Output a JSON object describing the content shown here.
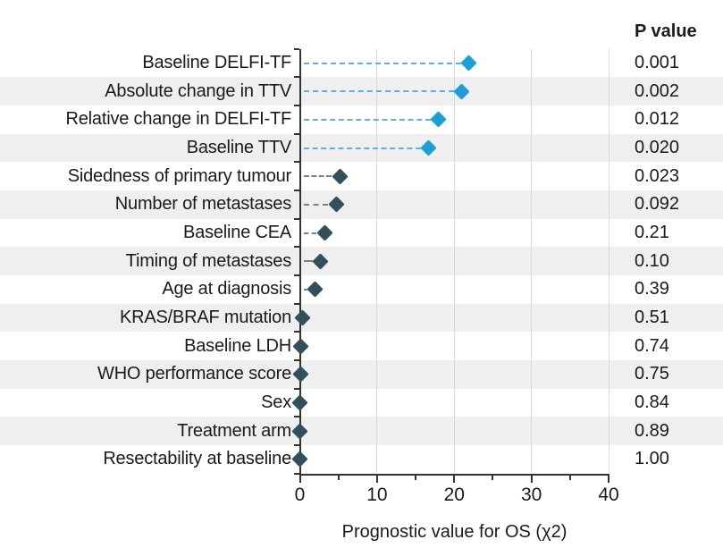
{
  "figure": {
    "p_value_header": "P value",
    "x_axis_title": "Prognostic value for OS (χ2)"
  },
  "chart_data": {
    "type": "scatter",
    "subtype": "horizontal-dot-forest",
    "title": "",
    "xlabel": "Prognostic value for OS (χ2)",
    "ylabel": "",
    "xlim": [
      0,
      40
    ],
    "xticks": [
      0,
      10,
      20,
      30,
      40
    ],
    "xticks_minor": [
      5,
      15,
      25,
      35
    ],
    "grid": "vertical lines at major ticks",
    "legend_position": "none",
    "p_value_column_header": "P value",
    "rows": [
      {
        "label": "Baseline DELFI-TF",
        "chi2": 21.9,
        "p_value": "0.001",
        "highlight": true
      },
      {
        "label": "Absolute change in TTV",
        "chi2": 21.0,
        "p_value": "0.002",
        "highlight": true
      },
      {
        "label": "Relative change in DELFI-TF",
        "chi2": 18.0,
        "p_value": "0.012",
        "highlight": true
      },
      {
        "label": "Baseline TTV",
        "chi2": 16.7,
        "p_value": "0.020",
        "highlight": true
      },
      {
        "label": "Sidedness of primary tumour",
        "chi2": 5.2,
        "p_value": "0.023",
        "highlight": false
      },
      {
        "label": "Number of metastases",
        "chi2": 4.7,
        "p_value": "0.092",
        "highlight": false
      },
      {
        "label": "Baseline CEA",
        "chi2": 3.2,
        "p_value": "0.21",
        "highlight": false
      },
      {
        "label": "Timing of metastases",
        "chi2": 2.7,
        "p_value": "0.10",
        "highlight": false
      },
      {
        "label": "Age at diagnosis",
        "chi2": 2.0,
        "p_value": "0.39",
        "highlight": false
      },
      {
        "label": "KRAS/BRAF mutation",
        "chi2": 0.4,
        "p_value": "0.51",
        "highlight": false
      },
      {
        "label": "Baseline LDH",
        "chi2": 0.15,
        "p_value": "0.74",
        "highlight": false
      },
      {
        "label": "WHO performance score",
        "chi2": 0.12,
        "p_value": "0.75",
        "highlight": false
      },
      {
        "label": "Sex",
        "chi2": 0.05,
        "p_value": "0.84",
        "highlight": false
      },
      {
        "label": "Treatment arm",
        "chi2": 0.03,
        "p_value": "0.89",
        "highlight": false
      },
      {
        "label": "Resectability at baseline",
        "chi2": 0.0,
        "p_value": "1.00",
        "highlight": false
      }
    ],
    "colors": {
      "highlight_marker": "#1d9ed9",
      "normal_marker": "#31505b",
      "highlight_leader": "#5cb1e1",
      "normal_leader": "#72858f",
      "row_stripe": "#efefef",
      "gridline": "#d9d9d9",
      "axis": "#333333",
      "text": "#1a1a1a"
    }
  }
}
